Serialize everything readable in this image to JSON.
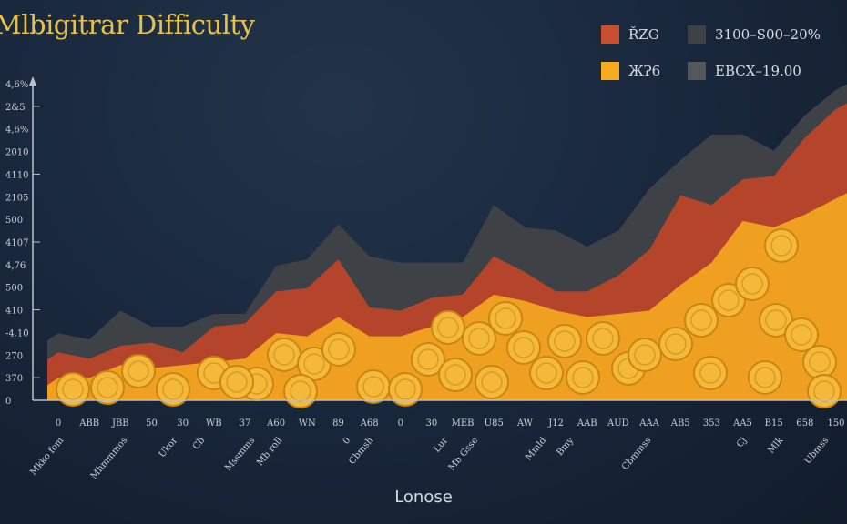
{
  "title": "Mlbigitrar Difficulty",
  "legend": [
    {
      "label": "ŘZG",
      "color": "#c9502f"
    },
    {
      "label": "3100–S00–20%",
      "color": "#3e4246"
    },
    {
      "label": "ЖɁ6",
      "color": "#f6aa1c"
    },
    {
      "label": "EBCX–19.00",
      "color": "#55585b"
    }
  ],
  "chart_data": {
    "type": "area",
    "stacked": false,
    "title": "Mlbigitrar Difficulty",
    "xlabel": "Lonose",
    "ylabel": "",
    "ylim": [
      0,
      100
    ],
    "grid": false,
    "legend_position": "top-right",
    "y_tick_labels": [
      "4,6%",
      "2&5",
      "4,6%",
      "2010",
      "4110",
      "2105",
      "500",
      "4107",
      "4,76",
      "500",
      "410",
      "-4.10",
      "270",
      "370",
      "0"
    ],
    "categories": [
      "0",
      "ABB",
      "JBB",
      "50",
      "30",
      "WB",
      "37",
      "A60",
      "WN",
      "89",
      "A68",
      "0",
      "30",
      "MEB",
      "U85",
      "AW",
      "J12",
      "AAB",
      "AUD",
      "AAA",
      "AB5",
      "353",
      "AA5",
      "B15",
      "658",
      "150"
    ],
    "rotated_labels": [
      "Mkko fom",
      "Mhmmmos",
      "Ukor",
      "Cb",
      "Mssmms",
      "Mb roll",
      "0",
      "Cbmsh",
      "Lur",
      "Mb Gsse",
      "Mmld",
      "Bmy",
      "Cbmmss",
      "Cj",
      "Mlk",
      "Ubmss"
    ],
    "series": [
      {
        "color": "#3e4246",
        "values": [
          21,
          19,
          28,
          23,
          23,
          27,
          27,
          42,
          44,
          55,
          45,
          43,
          43,
          43,
          61,
          54,
          53,
          48,
          53,
          66,
          75,
          83,
          83,
          78,
          89,
          97
        ]
      },
      {
        "color": "#b5452a",
        "values": [
          15,
          13,
          17,
          18,
          15,
          23,
          24,
          34,
          35,
          44,
          29,
          28,
          32,
          33,
          45,
          40,
          34,
          34,
          39,
          47,
          64,
          61,
          69,
          70,
          82,
          91
        ]
      },
      {
        "color": "#f0a020",
        "values": [
          7,
          7,
          11,
          10,
          11,
          12,
          13,
          21,
          20,
          26,
          20,
          20,
          23,
          26,
          33,
          31,
          28,
          26,
          27,
          28,
          36,
          43,
          56,
          54,
          58,
          63
        ]
      }
    ]
  }
}
